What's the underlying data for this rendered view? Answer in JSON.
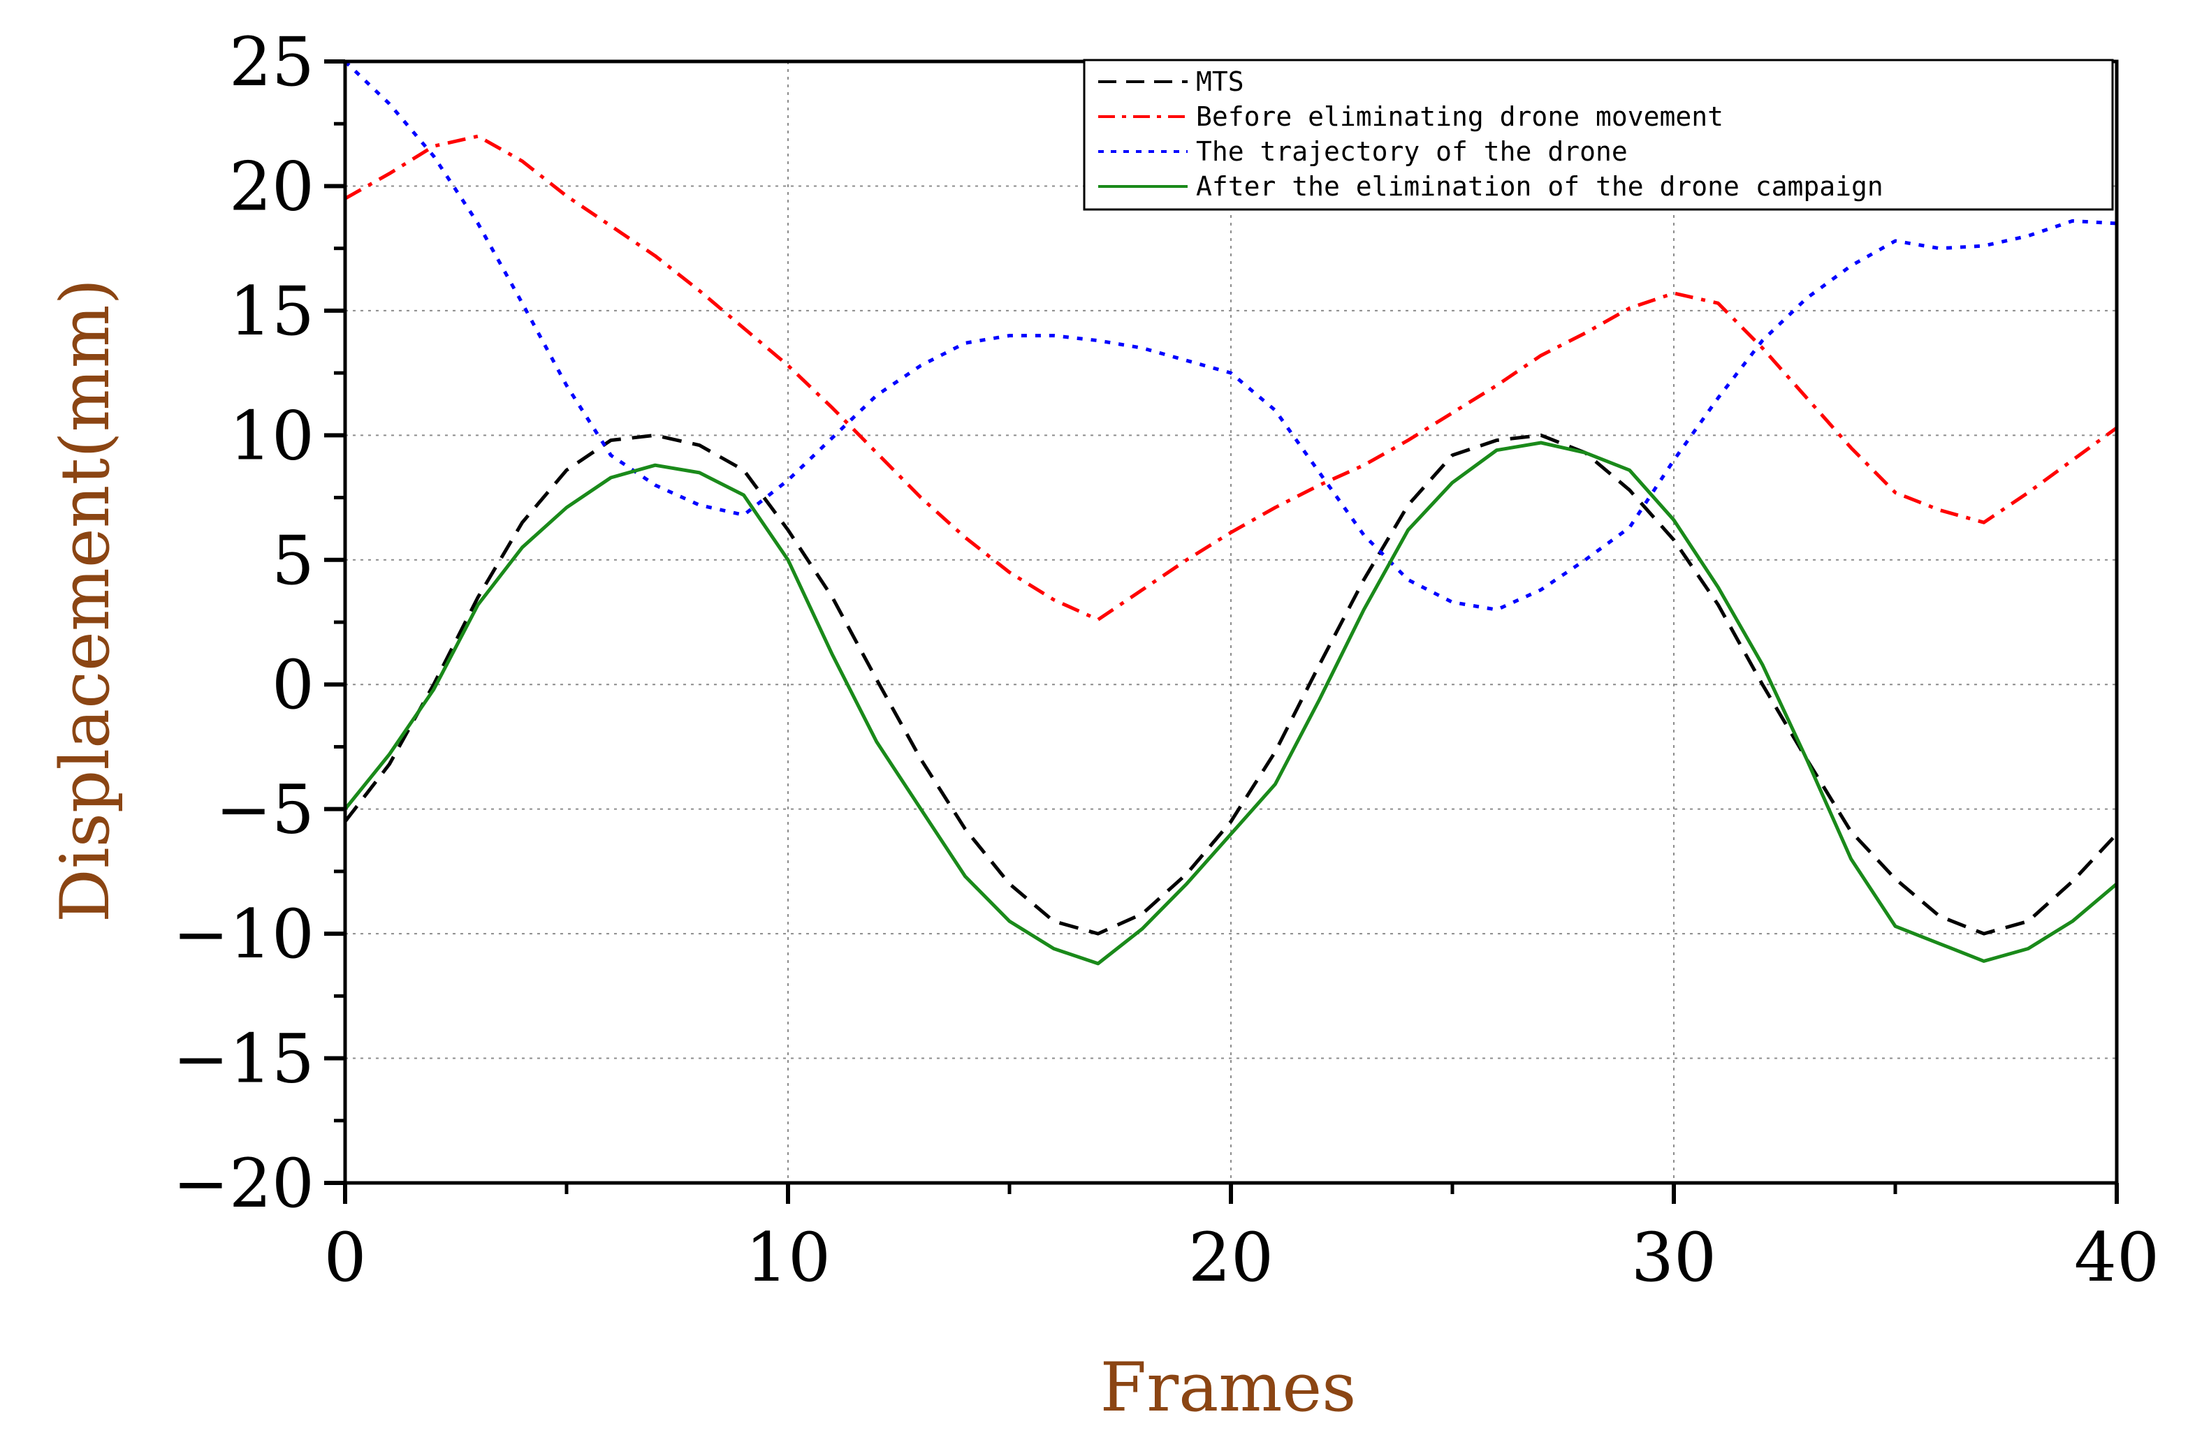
{
  "chart_data": {
    "type": "line",
    "title": "",
    "xlabel": "Frames",
    "ylabel": "Displacement(mm)",
    "xlim": [
      0,
      40
    ],
    "ylim": [
      -20,
      25
    ],
    "xticks": [
      0,
      10,
      20,
      30,
      40
    ],
    "yticks": [
      -20,
      -15,
      -10,
      -5,
      0,
      5,
      10,
      15,
      20,
      25
    ],
    "grid": true,
    "legend_position": "top-right",
    "series": [
      {
        "name": "MTS",
        "color": "#000000",
        "style": "dashed",
        "x": [
          0,
          1,
          2,
          3,
          4,
          5,
          6,
          7,
          8,
          9,
          10,
          11,
          12,
          13,
          14,
          15,
          16,
          17,
          18,
          19,
          20,
          21,
          22,
          23,
          24,
          25,
          26,
          27,
          28,
          29,
          30,
          31,
          32,
          33,
          34,
          35,
          36,
          37,
          38,
          39,
          40
        ],
        "y": [
          -5.5,
          -3.2,
          0,
          3.5,
          6.5,
          8.6,
          9.8,
          10,
          9.6,
          8.6,
          6.2,
          3.5,
          0.2,
          -3,
          -5.8,
          -8,
          -9.5,
          -10,
          -9.2,
          -7.6,
          -5.5,
          -2.7,
          0.8,
          4.2,
          7.2,
          9.2,
          9.8,
          10,
          9.3,
          7.8,
          5.8,
          3.2,
          0,
          -3,
          -5.9,
          -7.8,
          -9.3,
          -10,
          -9.5,
          -7.9,
          -6
        ]
      },
      {
        "name": "Before eliminating drone movement",
        "color": "#ff0000",
        "style": "dash-dot",
        "x": [
          0,
          1,
          2,
          3,
          4,
          5,
          6,
          7,
          8,
          9,
          10,
          11,
          12,
          13,
          14,
          15,
          16,
          17,
          18,
          19,
          20,
          21,
          22,
          23,
          24,
          25,
          26,
          27,
          28,
          29,
          30,
          31,
          32,
          33,
          34,
          35,
          36,
          37,
          38,
          39,
          40
        ],
        "y": [
          19.5,
          20.5,
          21.6,
          22,
          21,
          19.6,
          18.4,
          17.2,
          15.8,
          14.3,
          12.8,
          11.1,
          9.3,
          7.5,
          5.9,
          4.5,
          3.4,
          2.6,
          3.8,
          5,
          6.1,
          7.1,
          8,
          8.8,
          9.8,
          10.9,
          12,
          13.2,
          14.1,
          15.1,
          15.7,
          15.3,
          13.5,
          11.5,
          9.5,
          7.7,
          7,
          6.5,
          7.7,
          9,
          10.3
        ]
      },
      {
        "name": "The trajectory of the drone",
        "color": "#0000ff",
        "style": "dotted",
        "x": [
          0,
          1,
          2,
          3,
          4,
          5,
          6,
          7,
          8,
          9,
          10,
          11,
          12,
          13,
          14,
          15,
          16,
          17,
          18,
          19,
          20,
          21,
          22,
          23,
          24,
          25,
          26,
          27,
          28,
          29,
          30,
          31,
          32,
          33,
          34,
          35,
          36,
          37,
          38,
          39,
          40
        ],
        "y": [
          25,
          23.3,
          21.2,
          18.5,
          15.3,
          12,
          9.2,
          8,
          7.2,
          6.8,
          8.2,
          9.9,
          11.6,
          12.8,
          13.7,
          14,
          14,
          13.8,
          13.5,
          13,
          12.5,
          11,
          8.5,
          6,
          4.2,
          3.3,
          3,
          3.8,
          5,
          6.3,
          9,
          11.5,
          13.8,
          15.5,
          16.8,
          17.8,
          17.5,
          17.6,
          18,
          18.6,
          18.5
        ]
      },
      {
        "name": "After the elimination of the drone campaign",
        "color": "#1a8a1a",
        "style": "solid",
        "x": [
          0,
          1,
          2,
          3,
          4,
          5,
          6,
          7,
          8,
          9,
          10,
          11,
          12,
          13,
          14,
          15,
          16,
          17,
          18,
          19,
          20,
          21,
          22,
          23,
          24,
          25,
          26,
          27,
          28,
          29,
          30,
          31,
          32,
          33,
          34,
          35,
          36,
          37,
          38,
          39,
          40
        ],
        "y": [
          -5,
          -2.8,
          -0.2,
          3.2,
          5.5,
          7.1,
          8.3,
          8.8,
          8.5,
          7.6,
          5,
          1.2,
          -2.3,
          -5,
          -7.7,
          -9.5,
          -10.6,
          -11.2,
          -9.8,
          -8,
          -6,
          -4,
          -0.6,
          3,
          6.2,
          8.1,
          9.4,
          9.7,
          9.3,
          8.6,
          6.6,
          3.9,
          0.8,
          -3,
          -7,
          -9.7,
          -10.4,
          -11.1,
          -10.6,
          -9.5,
          -8
        ]
      }
    ]
  }
}
